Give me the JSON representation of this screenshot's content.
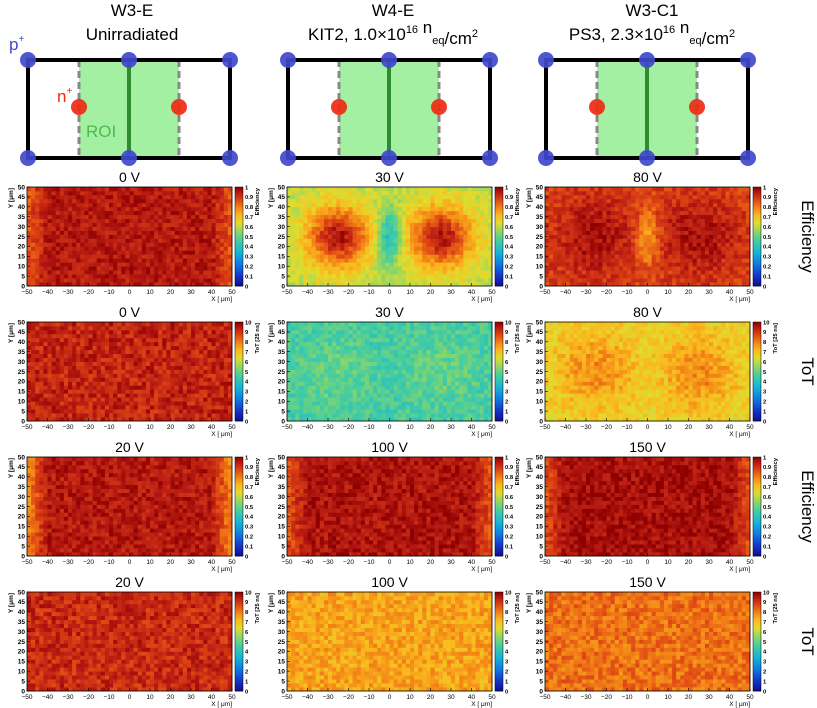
{
  "columns": [
    {
      "title": "W3-E",
      "subtitle": "Unirradiated",
      "subtitle_sup": "",
      "subtitle_tail": "",
      "subtitle_sub": "",
      "subtitle_end": "",
      "subtitle_sup2": ""
    },
    {
      "title": "W4-E",
      "subtitle": "KIT2, 1.0×10",
      "subtitle_sup": "16",
      "subtitle_tail": " n",
      "subtitle_sub": "eq",
      "subtitle_end": "/cm",
      "subtitle_sup2": "2"
    },
    {
      "title": "W3-C1",
      "subtitle": "PS3, 2.3×10",
      "subtitle_sup": "16",
      "subtitle_tail": " n",
      "subtitle_sub": "eq",
      "subtitle_end": "/cm",
      "subtitle_sup2": "2"
    }
  ],
  "schematic": {
    "p_label": "p",
    "p_sup": "+",
    "n_label": "n",
    "n_sup": "+",
    "roi_label": "ROI",
    "colors": {
      "frame": "#000000",
      "roi_fill": "#a3f0a3",
      "roi_line": "#2e8b2e",
      "roi_edge": "#888888",
      "p_contact": "#3f48cc",
      "n_contact": "#ee2a10"
    }
  },
  "row_labels": [
    "Efficiency",
    "ToT",
    "Efficiency",
    "ToT"
  ],
  "maps": {
    "xlabel": "X [ μm]",
    "ylabel": "Y [μm]",
    "x_ticks": [
      "−50",
      "−40",
      "−30",
      "−20",
      "−10",
      "0",
      "10",
      "20",
      "30",
      "40",
      "50"
    ],
    "y_ticks": [
      "0",
      "5",
      "10",
      "15",
      "20",
      "25",
      "30",
      "35",
      "40",
      "45",
      "50"
    ],
    "efficiency_label": "Efficiency",
    "efficiency_ticks": [
      "0",
      "0.1",
      "0.2",
      "0.3",
      "0.4",
      "0.5",
      "0.6",
      "0.7",
      "0.8",
      "0.9",
      "1"
    ],
    "tot_label": "ToT [25 ns]",
    "tot_ticks": [
      "0",
      "1",
      "2",
      "3",
      "4",
      "5",
      "6",
      "7",
      "8",
      "9",
      "10"
    ]
  },
  "chart_data": [
    {
      "type": "heatmap",
      "sensor": "W3-E",
      "quantity": "Efficiency",
      "title": "0 V",
      "xlim": [
        -50,
        50
      ],
      "ylim": [
        0,
        50
      ],
      "zlim": [
        0,
        1
      ],
      "model": "edge",
      "base": 0.95,
      "edge": 0.85
    },
    {
      "type": "heatmap",
      "sensor": "W4-E",
      "quantity": "Efficiency",
      "title": "30 V",
      "xlim": [
        -50,
        50
      ],
      "ylim": [
        0,
        50
      ],
      "zlim": [
        0,
        1
      ],
      "model": "lobes",
      "base": 0.6,
      "peak": 0.96,
      "center": 0.38,
      "lobe_x": 25,
      "lobe_y": 25,
      "lobe_r": 11
    },
    {
      "type": "heatmap",
      "sensor": "W3-C1",
      "quantity": "Efficiency",
      "title": "80 V",
      "xlim": [
        -50,
        50
      ],
      "ylim": [
        0,
        50
      ],
      "zlim": [
        0,
        1
      ],
      "model": "lobes",
      "base": 0.88,
      "peak": 0.97,
      "center": 0.75,
      "lobe_x": 25,
      "lobe_y": 25,
      "lobe_r": 14
    },
    {
      "type": "heatmap",
      "sensor": "W3-E",
      "quantity": "ToT",
      "title": "0 V",
      "xlim": [
        -50,
        50
      ],
      "ylim": [
        0,
        50
      ],
      "zlim": [
        0,
        10
      ],
      "model": "flat",
      "base": 9.3
    },
    {
      "type": "heatmap",
      "sensor": "W4-E",
      "quantity": "ToT",
      "title": "30 V",
      "xlim": [
        -50,
        50
      ],
      "ylim": [
        0,
        50
      ],
      "zlim": [
        0,
        10
      ],
      "model": "lobes",
      "base": 4.5,
      "peak": 5.0,
      "center": 4.5,
      "lobe_x": 25,
      "lobe_y": 25,
      "lobe_r": 14
    },
    {
      "type": "heatmap",
      "sensor": "W3-C1",
      "quantity": "ToT",
      "title": "80 V",
      "xlim": [
        -50,
        50
      ],
      "ylim": [
        0,
        50
      ],
      "zlim": [
        0,
        10
      ],
      "model": "lobes",
      "base": 6.6,
      "peak": 7.9,
      "center": 6.8,
      "lobe_x": 25,
      "lobe_y": 25,
      "lobe_r": 13
    },
    {
      "type": "heatmap",
      "sensor": "W3-E",
      "quantity": "Efficiency",
      "title": "20 V",
      "xlim": [
        -50,
        50
      ],
      "ylim": [
        0,
        50
      ],
      "zlim": [
        0,
        1
      ],
      "model": "edge",
      "base": 0.95,
      "edge": 0.78
    },
    {
      "type": "heatmap",
      "sensor": "W4-E",
      "quantity": "Efficiency",
      "title": "100 V",
      "xlim": [
        -50,
        50
      ],
      "ylim": [
        0,
        50
      ],
      "zlim": [
        0,
        1
      ],
      "model": "edge",
      "base": 0.96,
      "edge": 0.85
    },
    {
      "type": "heatmap",
      "sensor": "W3-C1",
      "quantity": "Efficiency",
      "title": "150 V",
      "xlim": [
        -50,
        50
      ],
      "ylim": [
        0,
        50
      ],
      "zlim": [
        0,
        1
      ],
      "model": "edge",
      "base": 0.97,
      "edge": 0.86
    },
    {
      "type": "heatmap",
      "sensor": "W3-E",
      "quantity": "ToT",
      "title": "20 V",
      "xlim": [
        -50,
        50
      ],
      "ylim": [
        0,
        50
      ],
      "zlim": [
        0,
        10
      ],
      "model": "flat",
      "base": 9.2
    },
    {
      "type": "heatmap",
      "sensor": "W4-E",
      "quantity": "ToT",
      "title": "100 V",
      "xlim": [
        -50,
        50
      ],
      "ylim": [
        0,
        50
      ],
      "zlim": [
        0,
        10
      ],
      "model": "flat",
      "base": 7.5
    },
    {
      "type": "heatmap",
      "sensor": "W3-C1",
      "quantity": "ToT",
      "title": "150 V",
      "xlim": [
        -50,
        50
      ],
      "ylim": [
        0,
        50
      ],
      "zlim": [
        0,
        10
      ],
      "model": "flat",
      "base": 8.2
    }
  ]
}
